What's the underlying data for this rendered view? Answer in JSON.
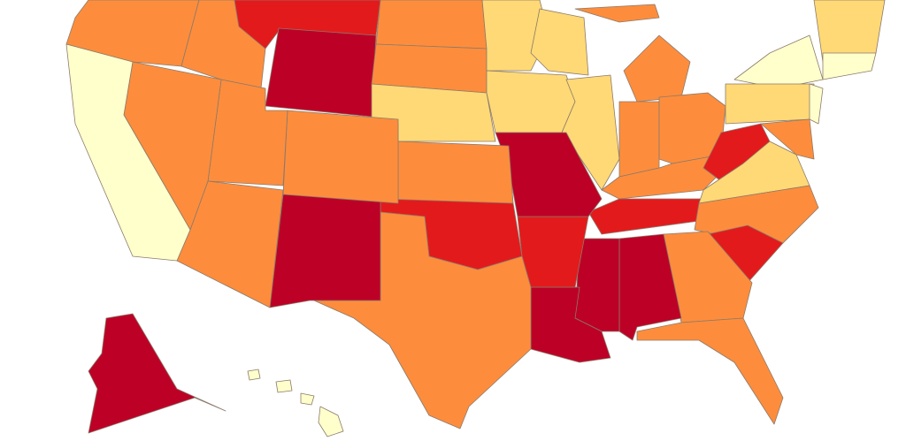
{
  "map": {
    "palette": [
      "#ffffcc",
      "#fed976",
      "#fd8d3c",
      "#e31a1c",
      "#bd0026"
    ],
    "border_color": "#8c7a6b",
    "background": "#ffffff"
  }
}
